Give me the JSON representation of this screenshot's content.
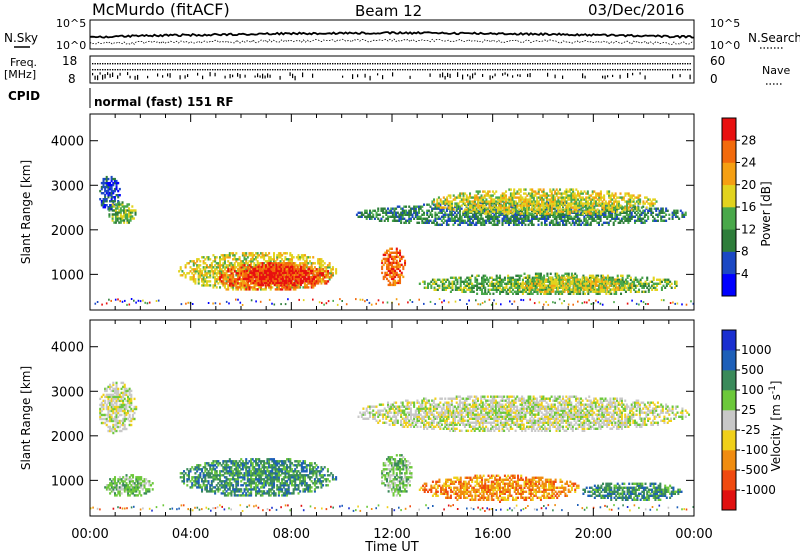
{
  "header": {
    "station": "McMurdo (fitACF)",
    "beam": "Beam 12",
    "date": "03/Dec/2016"
  },
  "top_panels": {
    "nsky_label": "N.Sky",
    "nsky_ticks": [
      "10^5",
      "10^0"
    ],
    "nsearch_label": "N.Search",
    "nsearch_ticks": [
      "10^5",
      "10^0"
    ],
    "freq_label_1": "Freq.",
    "freq_label_2": "[MHz]",
    "freq_ticks": [
      "18",
      "8"
    ],
    "nave_label": "Nave",
    "nave_ticks": [
      "60",
      "0"
    ],
    "cpid_label": "CPID",
    "cpid_text": "normal (fast) 151 RF"
  },
  "chart_data": [
    {
      "type": "heatmap",
      "name": "power",
      "ylabel": "Slant Range [km]",
      "yticks": [
        "1000",
        "2000",
        "3000",
        "4000"
      ],
      "ylim": [
        200,
        4600
      ],
      "xlim": [
        0,
        24
      ],
      "colorbar": {
        "label": "Power [dB]",
        "ticks": [
          "4",
          "8",
          "12",
          "16",
          "20",
          "24",
          "28"
        ],
        "colors": [
          "#0000ff",
          "#1b48c4",
          "#2e7d3a",
          "#49a84a",
          "#e2d31e",
          "#f59f12",
          "#f26a0c",
          "#e81010"
        ]
      },
      "regions": [
        {
          "t0": 0.3,
          "t1": 1.2,
          "r0": 2400,
          "r1": 3200,
          "level": 1
        },
        {
          "t0": 0.6,
          "t1": 1.8,
          "r0": 2100,
          "r1": 2600,
          "level": 3
        },
        {
          "t0": 3.5,
          "t1": 9.8,
          "r0": 600,
          "r1": 1500,
          "level": 4
        },
        {
          "t0": 5.0,
          "t1": 9.6,
          "r0": 600,
          "r1": 1250,
          "level": 6
        },
        {
          "t0": 6.0,
          "t1": 9.0,
          "r0": 700,
          "r1": 1200,
          "level": 7
        },
        {
          "t0": 11.5,
          "t1": 12.5,
          "r0": 700,
          "r1": 1600,
          "level": 6
        },
        {
          "t0": 10.5,
          "t1": 23.8,
          "r0": 2050,
          "r1": 2600,
          "level": 2
        },
        {
          "t0": 13.5,
          "t1": 22.5,
          "r0": 2300,
          "r1": 2900,
          "level": 4
        },
        {
          "t0": 13.0,
          "t1": 23.5,
          "r0": 500,
          "r1": 1000,
          "level": 3
        },
        {
          "t0": 17.0,
          "t1": 21.5,
          "r0": 550,
          "r1": 950,
          "level": 4
        }
      ]
    },
    {
      "type": "heatmap",
      "name": "velocity",
      "ylabel": "Slant Range [km]",
      "yticks": [
        "1000",
        "2000",
        "3000",
        "4000"
      ],
      "ylim": [
        200,
        4600
      ],
      "xlim": [
        0,
        24
      ],
      "xticks": [
        "00:00",
        "04:00",
        "08:00",
        "12:00",
        "16:00",
        "20:00",
        "00:00"
      ],
      "xlabel": "Time UT",
      "colorbar": {
        "label_pre": "Velocity [m s",
        "label_sup": "-1",
        "label_post": "]",
        "ticks": [
          "1000",
          "500",
          "100",
          "25",
          "-25",
          "-100",
          "-500",
          "-1000"
        ],
        "colors": [
          "#1a2fd0",
          "#1d5fb8",
          "#3a8a5a",
          "#6cc83a",
          "#c8c8c8",
          "#f0d01a",
          "#f08c10",
          "#f04a10",
          "#e01010"
        ]
      },
      "regions": [
        {
          "t0": 0.3,
          "t1": 1.8,
          "r0": 2000,
          "r1": 3200,
          "level": 4
        },
        {
          "t0": 0.5,
          "t1": 2.5,
          "r0": 600,
          "r1": 1100,
          "level": 3
        },
        {
          "t0": 3.5,
          "t1": 9.8,
          "r0": 600,
          "r1": 1500,
          "level": 2
        },
        {
          "t0": 11.5,
          "t1": 12.8,
          "r0": 600,
          "r1": 1600,
          "level": 3
        },
        {
          "t0": 10.5,
          "t1": 23.8,
          "r0": 2050,
          "r1": 2900,
          "level": 4
        },
        {
          "t0": 13.0,
          "t1": 19.5,
          "r0": 500,
          "r1": 1100,
          "level": 6
        },
        {
          "t0": 19.5,
          "t1": 23.5,
          "r0": 500,
          "r1": 950,
          "level": 2
        }
      ]
    }
  ]
}
